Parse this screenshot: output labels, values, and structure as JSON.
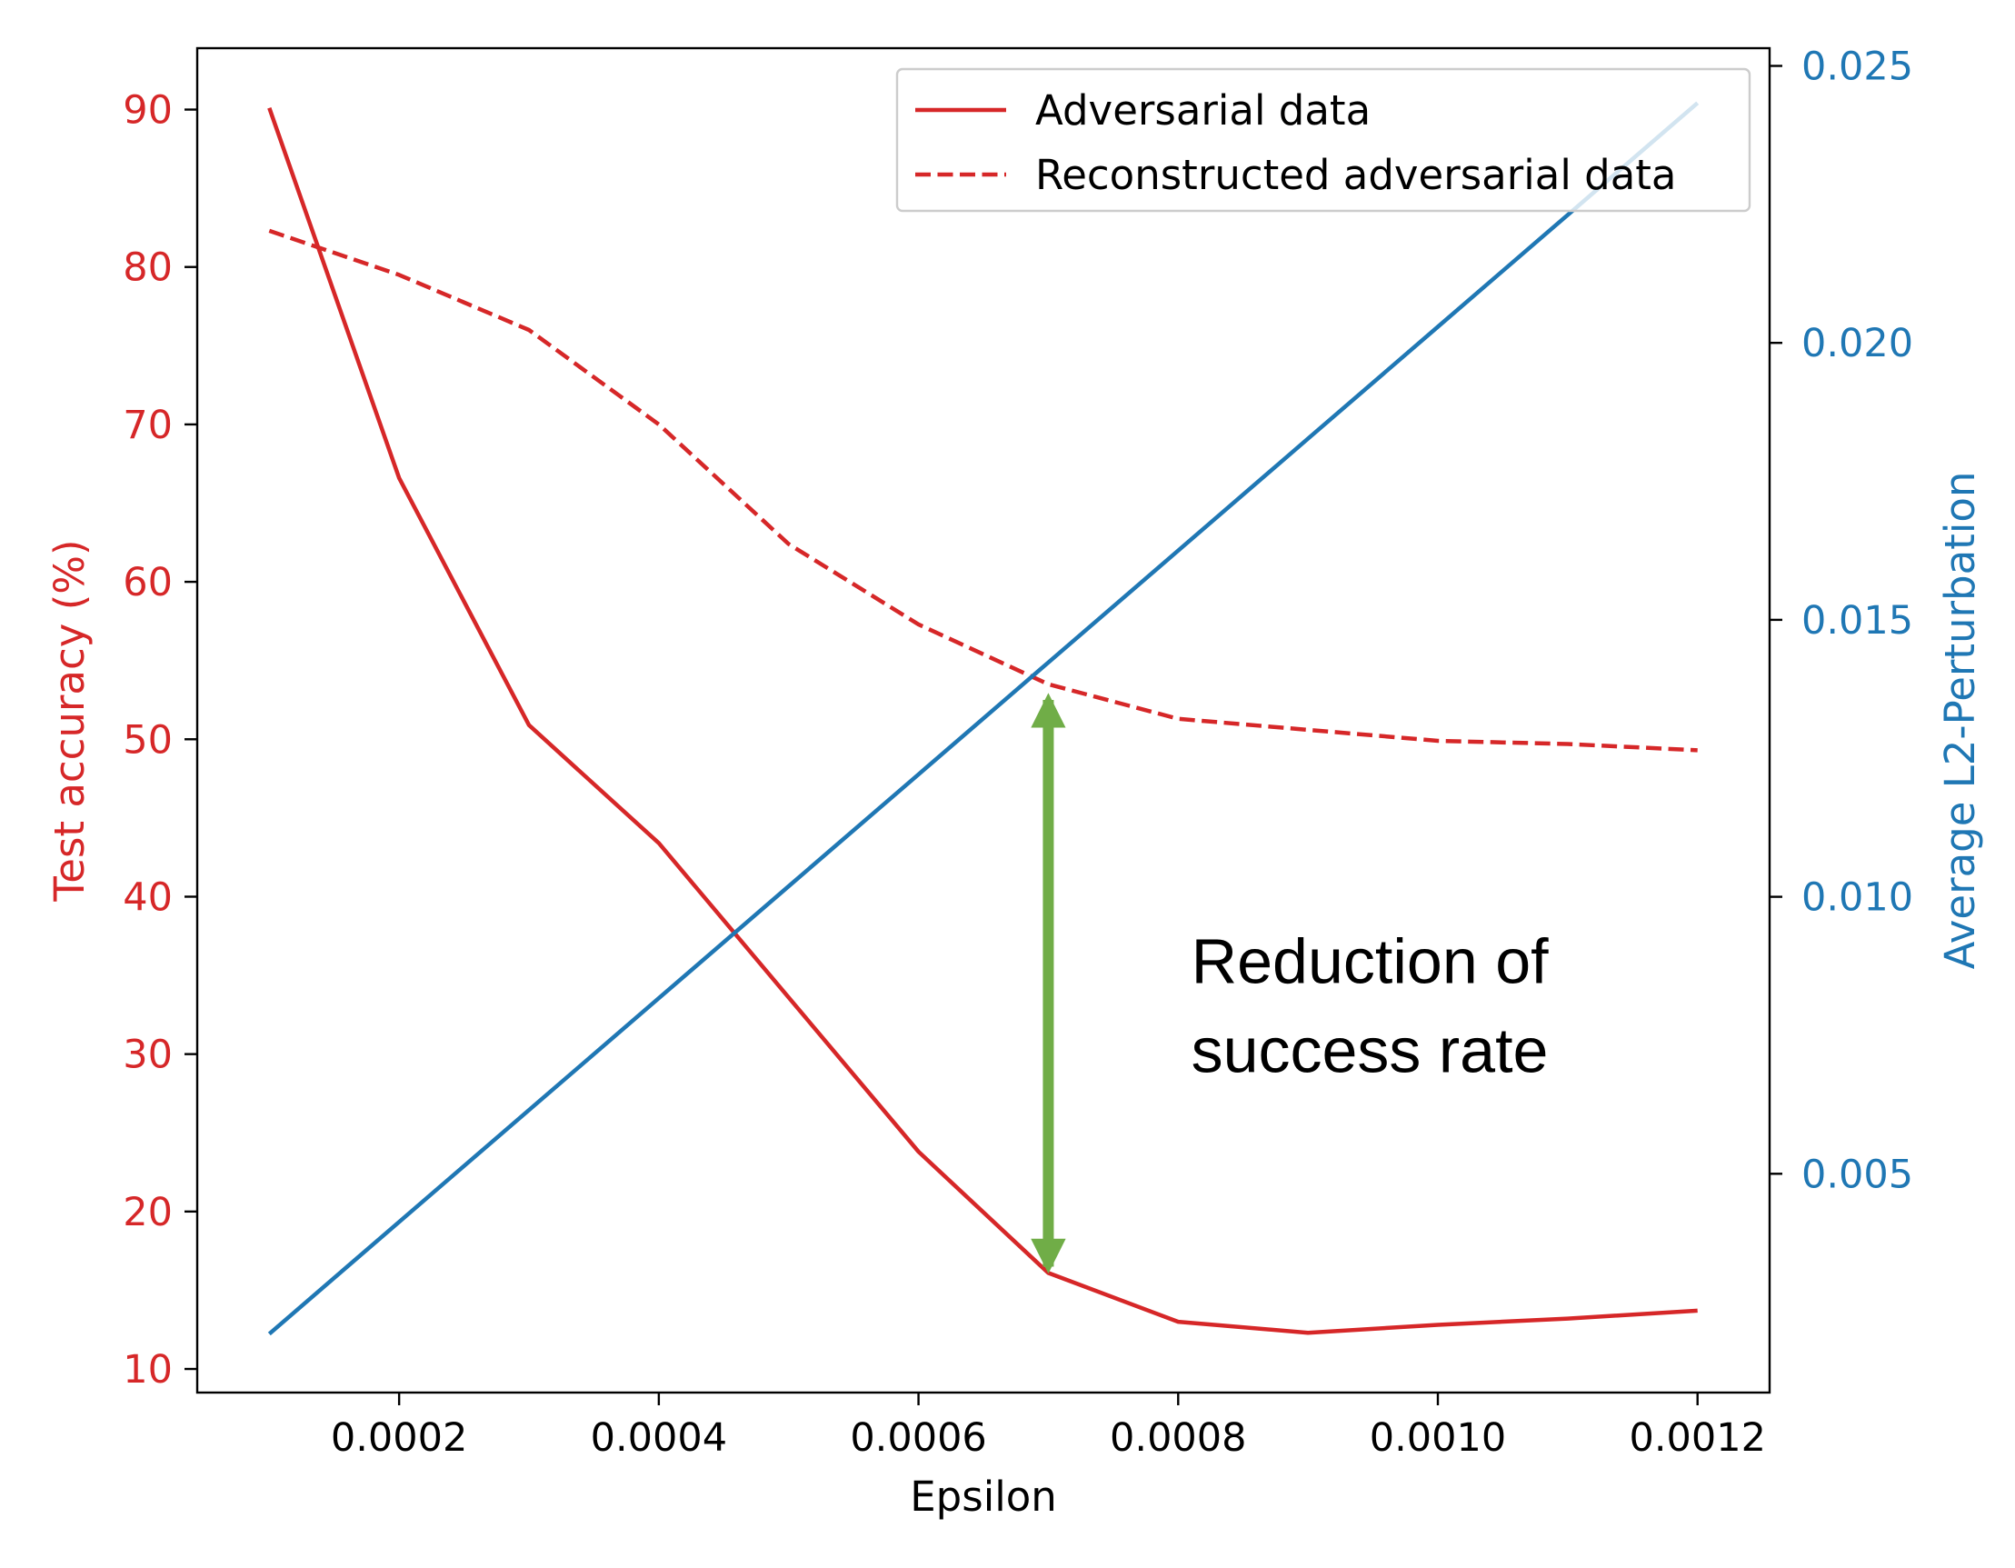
{
  "chart_data": {
    "type": "line",
    "xlabel": "Epsilon",
    "ylabel_left": "Test accuracy (%)",
    "ylabel_right": "Average L2-Perturbation",
    "x": [
      0.0001,
      0.0002,
      0.0003,
      0.0004,
      0.0005,
      0.0006,
      0.0007,
      0.0008,
      0.0009,
      0.001,
      0.0011,
      0.0012
    ],
    "xlim": [
      4.45e-05,
      0.0012555
    ],
    "ylim_left": [
      8.5,
      93.9
    ],
    "ylim_right": [
      0.00105,
      0.02532
    ],
    "x_ticks": [
      0.0002,
      0.0004,
      0.0006,
      0.0008,
      0.001,
      0.0012
    ],
    "x_tick_labels": [
      "0.0002",
      "0.0004",
      "0.0006",
      "0.0008",
      "0.0010",
      "0.0012"
    ],
    "y_left_ticks": [
      10,
      20,
      30,
      40,
      50,
      60,
      70,
      80,
      90
    ],
    "y_left_tick_labels": [
      "10",
      "20",
      "30",
      "40",
      "50",
      "60",
      "70",
      "80",
      "90"
    ],
    "y_right_ticks": [
      0.005,
      0.01,
      0.015,
      0.02,
      0.025
    ],
    "y_right_tick_labels": [
      "0.005",
      "0.010",
      "0.015",
      "0.020",
      "0.025"
    ],
    "series": [
      {
        "name": "Adversarial data",
        "axis": "left",
        "color": "#d62728",
        "dash": "solid",
        "values": [
          90.1,
          66.6,
          50.9,
          43.4,
          33.6,
          23.8,
          16.1,
          13.0,
          12.3,
          12.8,
          13.2,
          13.7
        ]
      },
      {
        "name": "Reconstructed adversarial data",
        "axis": "left",
        "color": "#d62728",
        "dash": "dashed",
        "values": [
          82.3,
          79.5,
          76.0,
          70.0,
          62.4,
          57.3,
          53.5,
          51.3,
          50.6,
          49.9,
          49.7,
          49.3
        ]
      },
      {
        "name": "",
        "axis": "right",
        "color": "#1f77b4",
        "dash": "solid",
        "values": [
          0.00211,
          0.00413,
          0.00615,
          0.00817,
          0.01019,
          0.01221,
          0.01423,
          0.01625,
          0.01827,
          0.02029,
          0.02231,
          0.02433
        ]
      }
    ],
    "legend": {
      "placement": "upper-right",
      "entries": [
        "Adversarial data",
        "Reconstructed adversarial data"
      ]
    },
    "annotation": {
      "lines": [
        "Reduction of",
        "success rate"
      ],
      "arrow_x": 0.0007,
      "arrow_from_y": 16.5,
      "arrow_to_y": 52.5,
      "arrow_color": "#70ad47",
      "text_x": 0.00081,
      "text_y": 34.5
    },
    "colors": {
      "left_axis": "#d62728",
      "right_axis": "#1f77b4",
      "axes": "#000000"
    }
  }
}
